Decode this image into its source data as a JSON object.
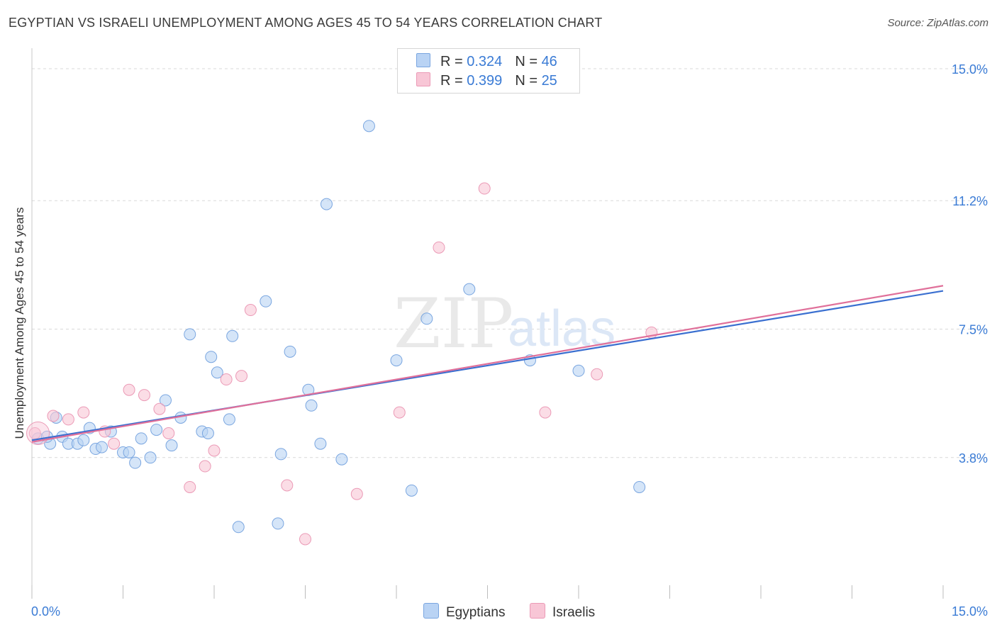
{
  "title": "EGYPTIAN VS ISRAELI UNEMPLOYMENT AMONG AGES 45 TO 54 YEARS CORRELATION CHART",
  "source": "Source: ZipAtlas.com",
  "watermark": {
    "zip": "ZIP",
    "atlas": "atlas"
  },
  "legend": {
    "egyptians": {
      "r_label": "R = ",
      "r": "0.324",
      "n_label": "N = ",
      "n": "46"
    },
    "israelis": {
      "r_label": "R = ",
      "r": "0.399",
      "n_label": "N = ",
      "n": "25"
    }
  },
  "bottom_legend": [
    "Egyptians",
    "Israelis"
  ],
  "colors": {
    "blue_fill": "#b9d3f4",
    "blue_stroke": "#7aa6e0",
    "blue_line": "#3a6fd0",
    "pink_fill": "#f8c6d6",
    "pink_stroke": "#eb9ab6",
    "pink_line": "#e0709a",
    "tick_text": "#3a7bd5",
    "grid": "#d9d9d9"
  },
  "chart_data": {
    "type": "scatter",
    "title": "EGYPTIAN VS ISRAELI UNEMPLOYMENT AMONG AGES 45 TO 54 YEARS CORRELATION CHART",
    "xlabel": "",
    "ylabel": "Unemployment Among Ages 45 to 54 years",
    "xlim": [
      0,
      15
    ],
    "ylim": [
      0,
      15.2
    ],
    "x_tick_labels": [
      "0.0%",
      "15.0%"
    ],
    "y_ticks": [
      3.8,
      7.5,
      11.2,
      15.0
    ],
    "y_tick_labels": [
      "3.8%",
      "7.5%",
      "11.2%",
      "15.0%"
    ],
    "grid": true,
    "legend_position": "top-center",
    "series": [
      {
        "name": "Egyptians",
        "color": "#b9d3f4",
        "trend": {
          "x": [
            0,
            15
          ],
          "y": [
            4.3,
            8.6
          ]
        },
        "points": [
          [
            0.1,
            4.35
          ],
          [
            0.3,
            4.2
          ],
          [
            0.4,
            4.95
          ],
          [
            0.5,
            4.4
          ],
          [
            0.6,
            4.2
          ],
          [
            0.75,
            4.2
          ],
          [
            0.85,
            4.3
          ],
          [
            0.95,
            4.65
          ],
          [
            1.05,
            4.05
          ],
          [
            1.15,
            4.1
          ],
          [
            1.3,
            4.55
          ],
          [
            1.5,
            3.95
          ],
          [
            1.6,
            3.95
          ],
          [
            1.7,
            3.65
          ],
          [
            1.8,
            4.35
          ],
          [
            1.95,
            3.8
          ],
          [
            2.05,
            4.6
          ],
          [
            2.2,
            5.45
          ],
          [
            2.3,
            4.15
          ],
          [
            2.45,
            4.95
          ],
          [
            2.6,
            7.35
          ],
          [
            2.8,
            4.55
          ],
          [
            2.9,
            4.5
          ],
          [
            2.95,
            6.7
          ],
          [
            3.05,
            6.25
          ],
          [
            3.25,
            4.9
          ],
          [
            3.3,
            7.3
          ],
          [
            3.4,
            1.8
          ],
          [
            3.85,
            8.3
          ],
          [
            4.05,
            1.9
          ],
          [
            4.1,
            3.9
          ],
          [
            4.25,
            6.85
          ],
          [
            4.55,
            5.75
          ],
          [
            4.6,
            5.3
          ],
          [
            4.75,
            4.2
          ],
          [
            4.85,
            11.1
          ],
          [
            5.1,
            3.75
          ],
          [
            5.55,
            13.35
          ],
          [
            6.0,
            6.6
          ],
          [
            6.25,
            2.85
          ],
          [
            6.5,
            7.8
          ],
          [
            7.2,
            8.65
          ],
          [
            8.2,
            6.6
          ],
          [
            9.0,
            6.3
          ],
          [
            10.0,
            2.95
          ],
          [
            0.25,
            4.4
          ]
        ]
      },
      {
        "name": "Israelis",
        "color": "#f8c6d6",
        "trend": {
          "x": [
            0,
            15
          ],
          "y": [
            4.25,
            8.75
          ]
        },
        "points": [
          [
            0.05,
            4.5
          ],
          [
            0.35,
            5.0
          ],
          [
            0.6,
            4.9
          ],
          [
            0.85,
            5.1
          ],
          [
            1.2,
            4.55
          ],
          [
            1.35,
            4.2
          ],
          [
            1.6,
            5.75
          ],
          [
            1.85,
            5.6
          ],
          [
            2.1,
            5.2
          ],
          [
            2.25,
            4.5
          ],
          [
            2.6,
            2.95
          ],
          [
            2.85,
            3.55
          ],
          [
            3.0,
            4.0
          ],
          [
            3.2,
            6.05
          ],
          [
            3.45,
            6.15
          ],
          [
            3.6,
            8.05
          ],
          [
            4.2,
            3.0
          ],
          [
            4.5,
            1.45
          ],
          [
            5.35,
            2.75
          ],
          [
            6.05,
            5.1
          ],
          [
            6.7,
            9.85
          ],
          [
            7.45,
            11.55
          ],
          [
            8.45,
            5.1
          ],
          [
            9.3,
            6.2
          ],
          [
            10.2,
            7.4
          ]
        ]
      }
    ]
  }
}
